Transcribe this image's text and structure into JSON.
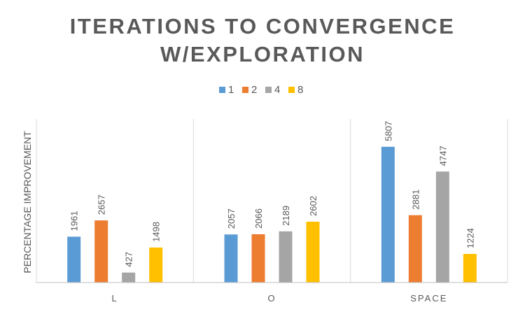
{
  "chart_data": {
    "type": "bar",
    "title_lines": [
      "ITERATIONS TO CONVERGENCE",
      "W/EXPLORATION"
    ],
    "ylabel": "PERCENTAGE IMPROVEMENT",
    "xlabel": "",
    "categories": [
      "L",
      "O",
      "SPACE"
    ],
    "series": [
      {
        "name": "1",
        "color": "#5b9bd5",
        "values": [
          1961,
          2057,
          5807
        ]
      },
      {
        "name": "2",
        "color": "#ed7d31",
        "values": [
          2657,
          2066,
          2881
        ]
      },
      {
        "name": "4",
        "color": "#a5a5a5",
        "values": [
          427,
          2189,
          4747
        ]
      },
      {
        "name": "8",
        "color": "#ffc000",
        "values": [
          1498,
          2602,
          1224
        ]
      }
    ],
    "ylim": [
      0,
      7000
    ],
    "legend_position": "top",
    "grid": "vertical category separators",
    "show_data_labels": true
  }
}
